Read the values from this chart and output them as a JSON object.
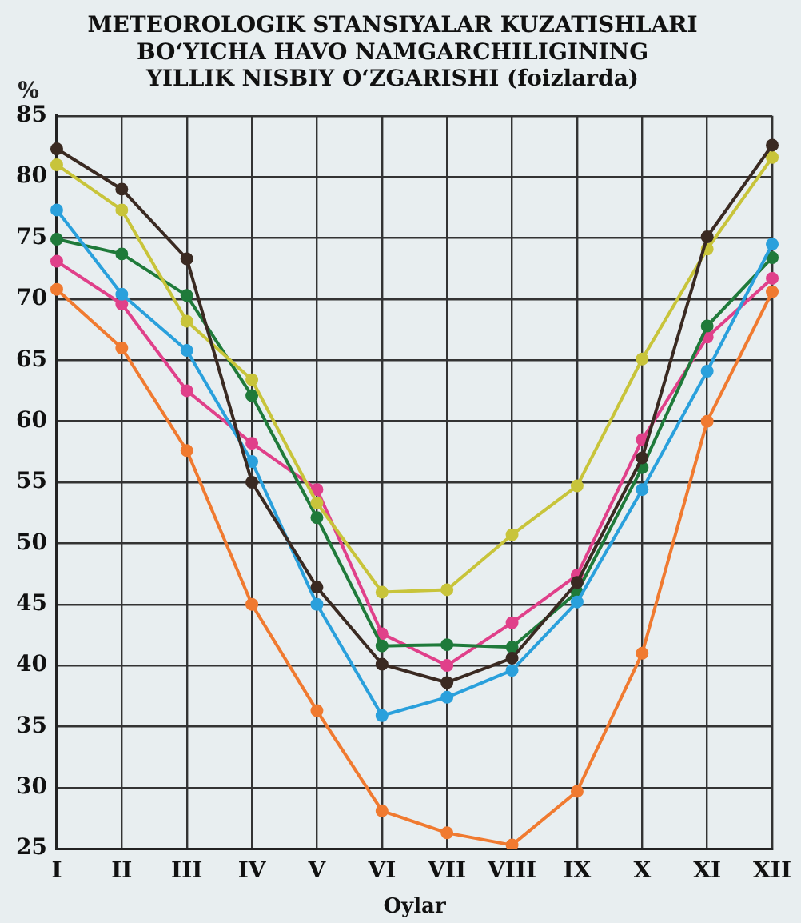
{
  "chart_data": {
    "type": "line",
    "title": "METEOROLOGIK STANSIYALAR KUZATISHLARI\nBOʻYICHA HAVO NAMGARCHILIGINING\nYILLIK NISBIY OʻZGARISHI (foizlarda)",
    "xlabel": "Oylar",
    "ylabel": "%",
    "categories": [
      "I",
      "II",
      "III",
      "IV",
      "V",
      "VI",
      "VII",
      "VIII",
      "IX",
      "X",
      "XI",
      "XII"
    ],
    "ylim": [
      25,
      85
    ],
    "yticks": [
      25,
      30,
      35,
      40,
      45,
      50,
      55,
      60,
      65,
      70,
      75,
      80,
      85
    ],
    "grid": true,
    "legend": false,
    "marker": "circle",
    "line_style": "solid",
    "series": [
      {
        "color": "#3a2a22",
        "values": [
          82.3,
          79,
          73.3,
          55,
          46.4,
          40.1,
          38.6,
          40.6,
          46.8,
          57,
          75.1,
          82.6
        ]
      },
      {
        "color": "#c8c43a",
        "values": [
          81,
          77.3,
          68.2,
          63.4,
          53.3,
          46,
          46.2,
          50.7,
          54.7,
          65.1,
          74.1,
          81.6
        ]
      },
      {
        "color": "#2aa0dc",
        "values": [
          77.3,
          70.4,
          65.8,
          56.7,
          45,
          35.9,
          37.4,
          39.6,
          45.2,
          54.4,
          64.1,
          74.5
        ]
      },
      {
        "color": "#1f7a3a",
        "values": [
          74.9,
          73.7,
          70.3,
          62.1,
          52.1,
          41.6,
          41.7,
          41.5,
          46,
          56.2,
          67.8,
          73.4
        ]
      },
      {
        "color": "#e0408a",
        "values": [
          73.1,
          69.6,
          62.5,
          58.2,
          54.4,
          42.6,
          40,
          43.5,
          47.4,
          58.5,
          66.9,
          71.7
        ]
      },
      {
        "color": "#f07a30",
        "values": [
          70.8,
          66,
          57.6,
          45,
          36.3,
          28.1,
          26.3,
          25.3,
          29.7,
          41,
          60,
          70.6
        ]
      }
    ]
  }
}
